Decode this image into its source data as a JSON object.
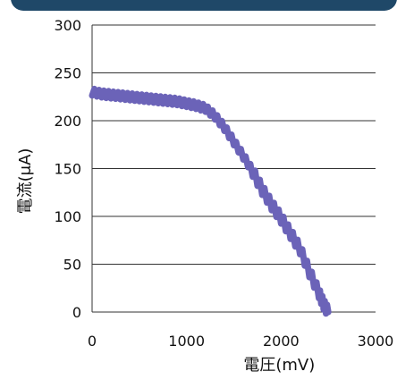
{
  "header": {
    "color": "#1f4868"
  },
  "chart_data": {
    "type": "line",
    "xlabel": "電圧(mV)",
    "ylabel": "電流(μA)",
    "xlim": [
      0,
      3000
    ],
    "ylim": [
      0,
      300
    ],
    "x_ticks": [
      "0",
      "1000",
      "2000",
      "3000"
    ],
    "y_ticks": [
      "0",
      "50",
      "100",
      "150",
      "200",
      "250",
      "300"
    ],
    "grid": true,
    "series_color": "#6b63b8",
    "series": [
      {
        "x": [
          0,
          100,
          200,
          300,
          400,
          500,
          600,
          700,
          800,
          900,
          1000,
          1100,
          1200,
          1300,
          1400,
          1500,
          1600,
          1700,
          1800,
          1900,
          2000,
          2100,
          2200,
          2300,
          2400,
          2450,
          2500
        ],
        "y": [
          230,
          228,
          227,
          226,
          225,
          224,
          223,
          222,
          221,
          220,
          218,
          216,
          213,
          205,
          193,
          178,
          163,
          147,
          128,
          112,
          98,
          82,
          66,
          42,
          20,
          8,
          0
        ]
      }
    ]
  }
}
